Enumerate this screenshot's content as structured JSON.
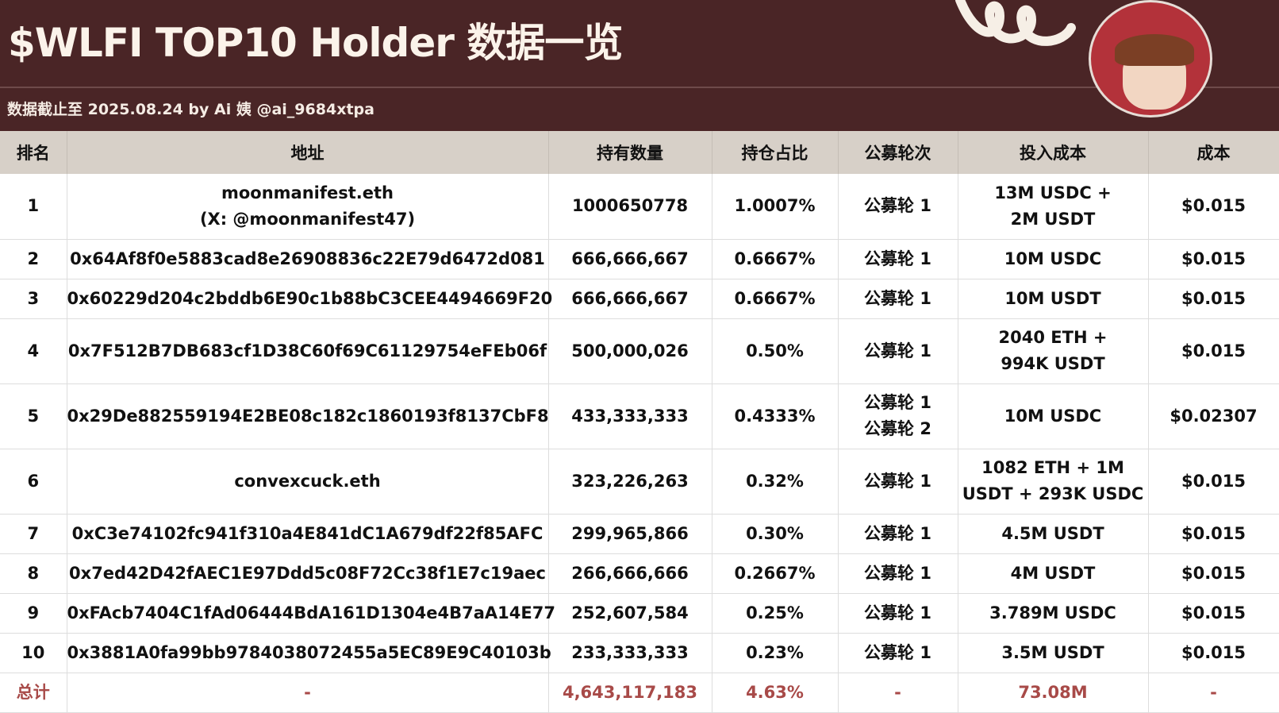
{
  "title": "$WLFI TOP10 Holder 数据一览",
  "subtitle": "数据截止至 2025.08.24 by Ai 姨 @ai_9684xtpa",
  "colors": {
    "header_bg": "#4a2526",
    "column_header_bg": "#d7d0c8",
    "total_text": "#a84a48"
  },
  "columns": [
    "排名",
    "地址",
    "持有数量",
    "持仓占比",
    "公募轮次",
    "投入成本",
    "成本"
  ],
  "rows": [
    {
      "rank": "1",
      "address": "moonmanifest.eth",
      "address2": "(X: @moonmanifest47)",
      "amount": "1000650778",
      "share": "1.0007%",
      "round": "公募轮 1",
      "round2": "",
      "invest": "13M USDC +",
      "invest2": "2M USDT",
      "cost": "$0.015"
    },
    {
      "rank": "2",
      "address": "0x64Af8f0e5883cad8e26908836c22E79d6472d081",
      "address2": "",
      "amount": "666,666,667",
      "share": "0.6667%",
      "round": "公募轮 1",
      "round2": "",
      "invest": "10M USDC",
      "invest2": "",
      "cost": "$0.015"
    },
    {
      "rank": "3",
      "address": "0x60229d204c2bddb6E90c1b88bC3CEE4494669F20",
      "address2": "",
      "amount": "666,666,667",
      "share": "0.6667%",
      "round": "公募轮 1",
      "round2": "",
      "invest": "10M USDT",
      "invest2": "",
      "cost": "$0.015"
    },
    {
      "rank": "4",
      "address": "0x7F512B7DB683cf1D38C60f69C61129754eFEb06f",
      "address2": "",
      "amount": "500,000,026",
      "share": "0.50%",
      "round": "公募轮 1",
      "round2": "",
      "invest": "2040 ETH +",
      "invest2": "994K USDT",
      "cost": "$0.015"
    },
    {
      "rank": "5",
      "address": "0x29De882559194E2BE08c182c1860193f8137CbF8",
      "address2": "",
      "amount": "433,333,333",
      "share": "0.4333%",
      "round": "公募轮 1",
      "round2": "公募轮 2",
      "invest": "10M USDC",
      "invest2": "",
      "cost": "$0.02307"
    },
    {
      "rank": "6",
      "address": "convexcuck.eth",
      "address2": "",
      "amount": "323,226,263",
      "share": "0.32%",
      "round": "公募轮 1",
      "round2": "",
      "invest": "1082 ETH + 1M",
      "invest2": "USDT + 293K USDC",
      "cost": "$0.015"
    },
    {
      "rank": "7",
      "address": "0xC3e74102fc941f310a4E841dC1A679df22f85AFC",
      "address2": "",
      "amount": "299,965,866",
      "share": "0.30%",
      "round": "公募轮 1",
      "round2": "",
      "invest": "4.5M USDT",
      "invest2": "",
      "cost": "$0.015"
    },
    {
      "rank": "8",
      "address": "0x7ed42D42fAEC1E97Ddd5c08F72Cc38f1E7c19aec",
      "address2": "",
      "amount": "266,666,666",
      "share": "0.2667%",
      "round": "公募轮 1",
      "round2": "",
      "invest": "4M USDT",
      "invest2": "",
      "cost": "$0.015"
    },
    {
      "rank": "9",
      "address": "0xFAcb7404C1fAd06444BdA161D1304e4B7aA14E77",
      "address2": "",
      "amount": "252,607,584",
      "share": "0.25%",
      "round": "公募轮 1",
      "round2": "",
      "invest": "3.789M USDC",
      "invest2": "",
      "cost": "$0.015"
    },
    {
      "rank": "10",
      "address": "0x3881A0fa99bb9784038072455a5EC89E9C40103b",
      "address2": "",
      "amount": "233,333,333",
      "share": "0.23%",
      "round": "公募轮 1",
      "round2": "",
      "invest": "3.5M USDT",
      "invest2": "",
      "cost": "$0.015"
    }
  ],
  "total": {
    "rank": "总计",
    "address": "-",
    "amount": "4,643,117,183",
    "share": "4.63%",
    "round": "-",
    "invest": "73.08M",
    "cost": "-"
  }
}
